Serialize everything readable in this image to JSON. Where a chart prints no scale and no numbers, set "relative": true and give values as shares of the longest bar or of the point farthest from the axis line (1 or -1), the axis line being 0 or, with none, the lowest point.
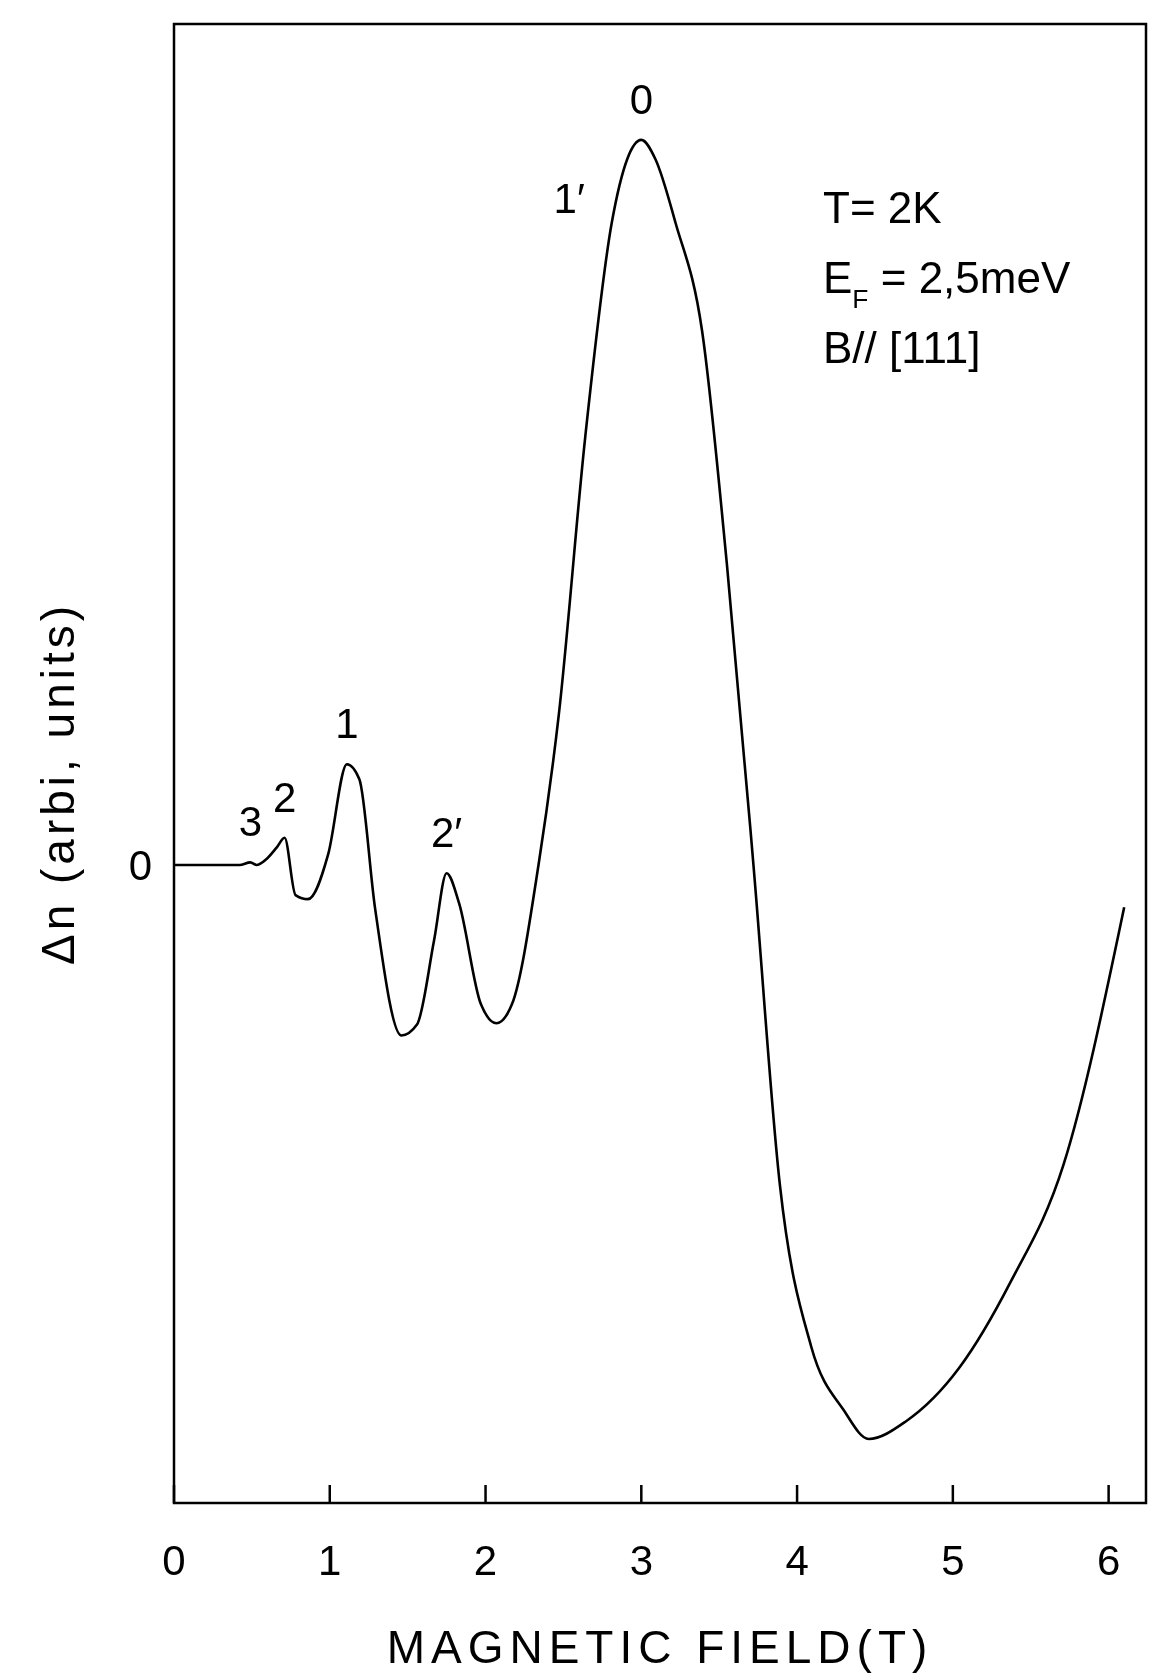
{
  "chart_data": {
    "type": "line",
    "relative": true,
    "xlabel": "MAGNETIC FIELD(T)",
    "ylabel": "Δn (arbi, units)",
    "xlim": [
      0,
      6.24
    ],
    "xticks": [
      0,
      1,
      2,
      3,
      4,
      5,
      6
    ],
    "grid": false,
    "marker": "none",
    "line_style": "solid",
    "x": [
      0,
      0.42,
      0.49,
      0.53,
      0.59,
      0.66,
      0.71,
      0.78,
      0.86,
      0.99,
      1.11,
      1.19,
      1.29,
      1.46,
      1.56,
      1.67,
      1.75,
      1.83,
      1.97,
      2.07,
      2.17,
      2.34,
      2.47,
      2.64,
      2.81,
      2.91,
      3.0,
      3.09,
      3.22,
      3.39,
      3.55,
      3.72,
      3.89,
      4.09,
      4.3,
      4.46,
      4.7,
      5.04,
      5.37,
      5.71,
      6.1
    ],
    "series": [
      {
        "color": "#000000",
        "values": [
          0.468,
          0.468,
          0.47,
          0.468,
          0.472,
          0.481,
          0.488,
          0.446,
          0.443,
          0.476,
          0.542,
          0.531,
          0.437,
          0.343,
          0.351,
          0.413,
          0.462,
          0.44,
          0.366,
          0.352,
          0.366,
          0.468,
          0.578,
          0.782,
          0.939,
          0.986,
          1.0,
          0.986,
          0.939,
          0.86,
          0.688,
          0.468,
          0.233,
          0.115,
          0.068,
          0.047,
          0.06,
          0.099,
          0.162,
          0.248,
          0.437
        ]
      }
    ],
    "annotations": [
      {
        "text": "3",
        "x": 0.49,
        "y": 0.47
      },
      {
        "text": "2",
        "x": 0.71,
        "y": 0.488
      },
      {
        "text": "1",
        "x": 1.11,
        "y": 0.542
      },
      {
        "text": "2′",
        "x": 1.75,
        "y": 0.462
      },
      {
        "text": "1′",
        "x": 2.83,
        "y": 0.957
      },
      {
        "text": "0",
        "x": 0,
        "y": 0.468
      },
      {
        "text": "0",
        "x": 3.0,
        "y": 1.0
      },
      "T= 2K",
      "E$_{F}$ = 2,5meV",
      "B// [111]"
    ]
  }
}
